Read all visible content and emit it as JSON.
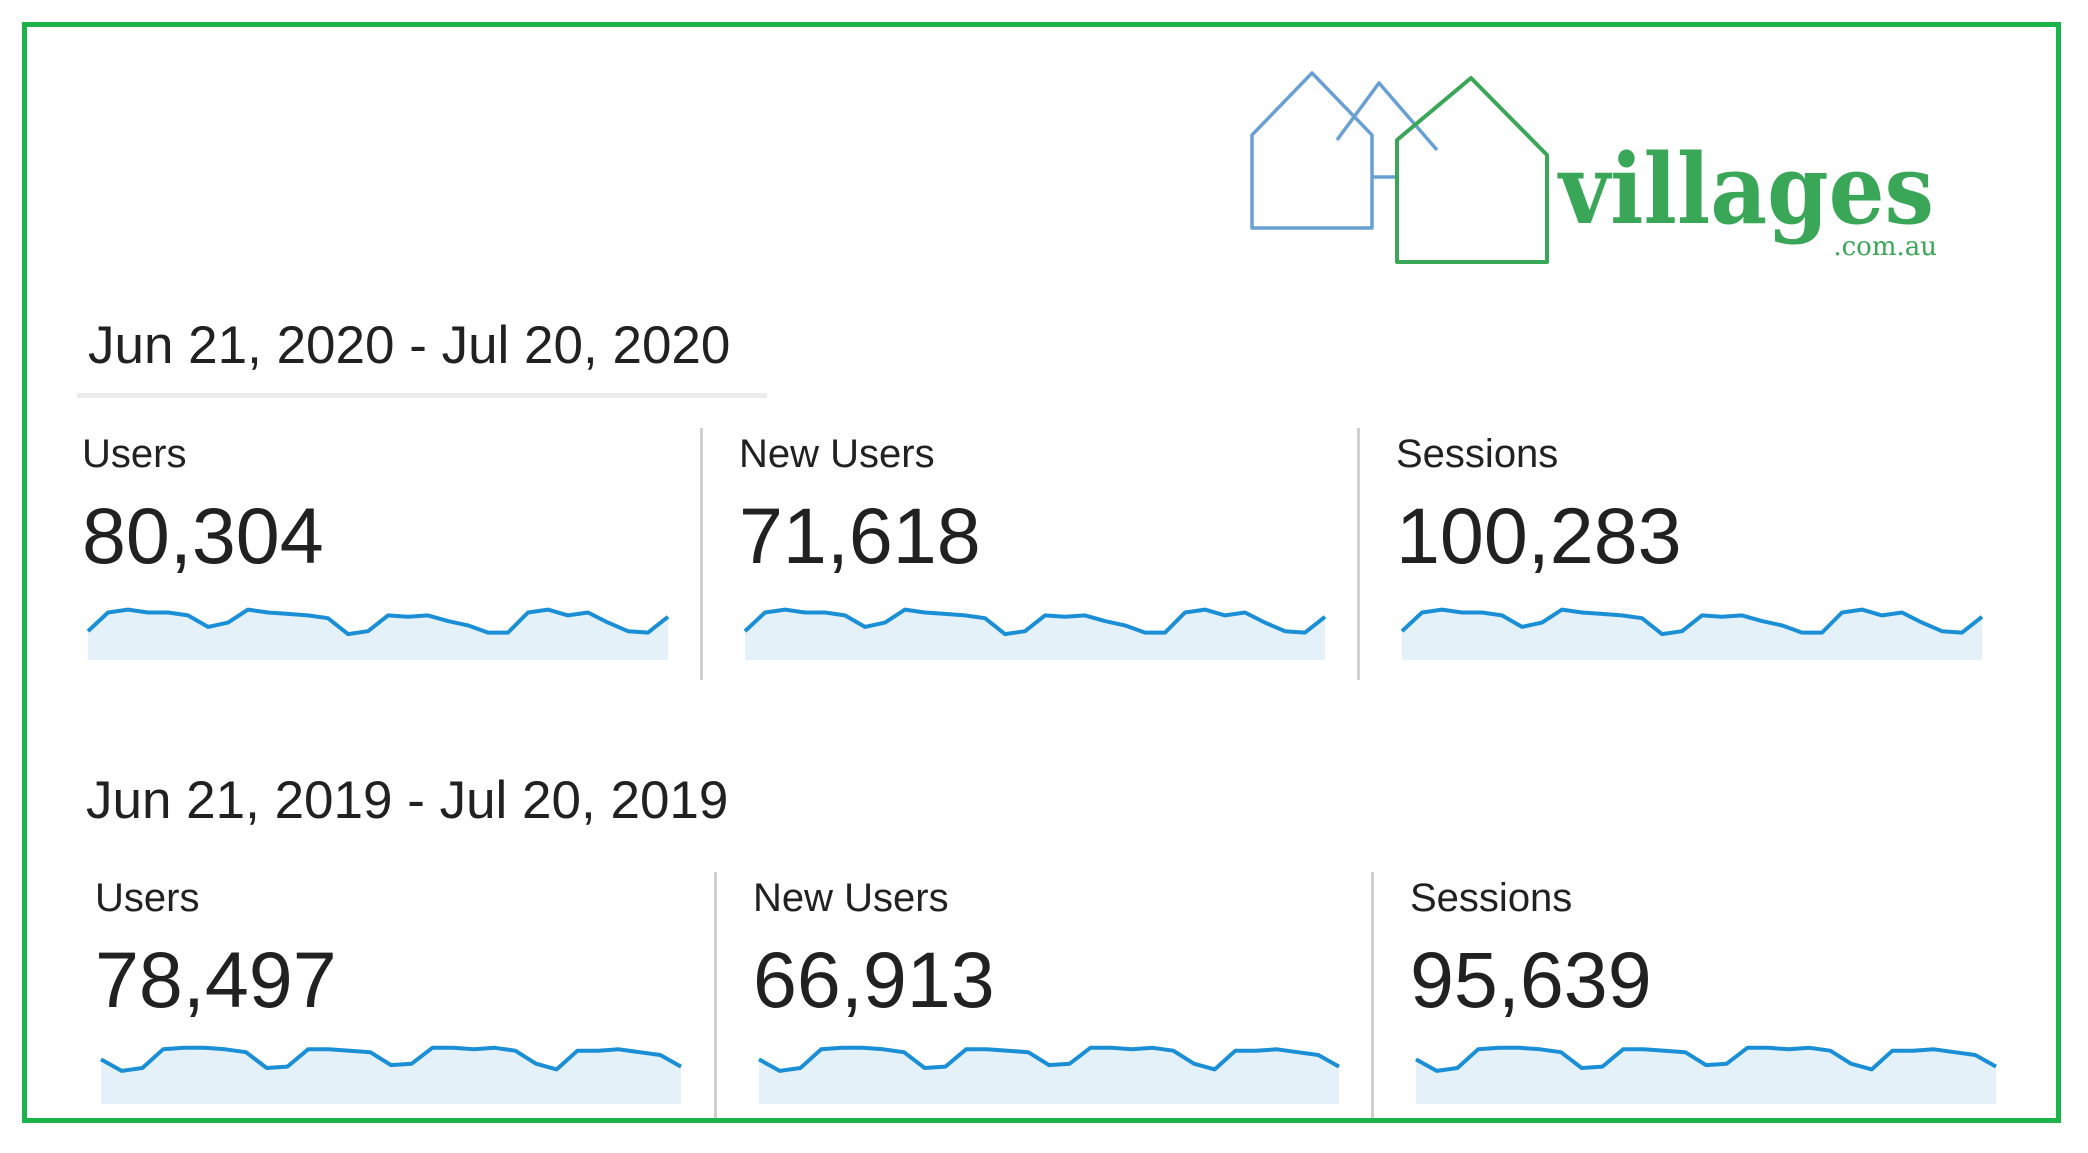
{
  "logo": {
    "wordmark": "villages",
    "domain_suffix": ".com.au",
    "colors": {
      "green": "#3aa657",
      "blue": "#6a9fd4"
    }
  },
  "accent_colors": {
    "frame": "#1bb34a",
    "sparkline_stroke": "#1a8fd6",
    "sparkline_fill": "#e4f1f9"
  },
  "periods": [
    {
      "date_range": "Jun 21, 2020 - Jul 20, 2020",
      "metrics": [
        {
          "label": "Users",
          "value": "80,304"
        },
        {
          "label": "New Users",
          "value": "71,618"
        },
        {
          "label": "Sessions",
          "value": "100,283"
        }
      ],
      "sparkline_points": [
        0.4,
        0.66,
        0.7,
        0.66,
        0.66,
        0.62,
        0.46,
        0.52,
        0.7,
        0.66,
        0.64,
        0.62,
        0.58,
        0.36,
        0.4,
        0.62,
        0.6,
        0.62,
        0.54,
        0.48,
        0.38,
        0.38,
        0.66,
        0.7,
        0.62,
        0.66,
        0.52,
        0.4,
        0.38,
        0.6
      ]
    },
    {
      "date_range": "Jun 21, 2019 - Jul 20, 2019",
      "metrics": [
        {
          "label": "Users",
          "value": "78,497"
        },
        {
          "label": "New Users",
          "value": "66,913"
        },
        {
          "label": "Sessions",
          "value": "95,639"
        }
      ],
      "sparkline_points": [
        0.62,
        0.46,
        0.5,
        0.76,
        0.78,
        0.78,
        0.76,
        0.72,
        0.5,
        0.52,
        0.76,
        0.76,
        0.74,
        0.72,
        0.54,
        0.56,
        0.78,
        0.78,
        0.76,
        0.78,
        0.74,
        0.56,
        0.48,
        0.74,
        0.74,
        0.76,
        0.72,
        0.68,
        0.52
      ]
    }
  ]
}
